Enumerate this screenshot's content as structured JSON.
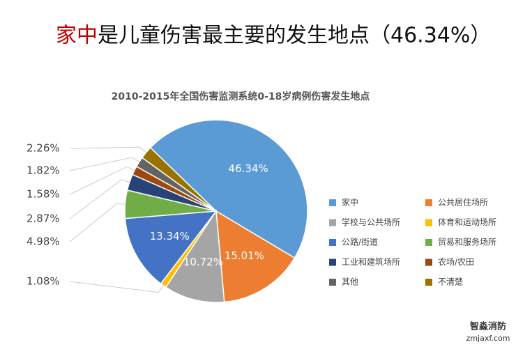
{
  "chart_data": {
    "type": "pie",
    "title_highlight": "家中",
    "title": "是儿童伤害最主要的发生地点（46.34%）",
    "subtitle": "2010-2015年全国伤害监测系统0-18岁病例伤害发生地点",
    "categories": [
      "家中",
      "公共居住场所",
      "学校与公共场所",
      "体育和运动场所",
      "公路/街道",
      "贸易和服务场所",
      "工业和建筑场所",
      "农场/农田",
      "其他",
      "不清楚"
    ],
    "values": [
      46.34,
      15.01,
      10.72,
      1.08,
      13.34,
      4.98,
      2.87,
      1.58,
      1.82,
      2.26
    ],
    "value_labels": [
      "46.34%",
      "15.01%",
      "10.72%",
      "1.08%",
      "13.34%",
      "4.98%",
      "2.87%",
      "1.58%",
      "1.82%",
      "2.26%"
    ],
    "colors": [
      "#5b9bd5",
      "#ed7d31",
      "#a5a5a5",
      "#ffc000",
      "#4472c4",
      "#70ad47",
      "#264478",
      "#9e480e",
      "#636363",
      "#997300"
    ],
    "legend": "right"
  },
  "watermark": {
    "name": "智淼消防",
    "url": "zmjaxf.com"
  }
}
